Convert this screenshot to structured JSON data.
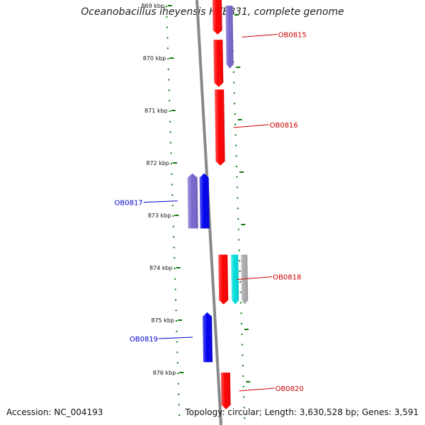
{
  "title": "Oceanobacillus iheyensis HTE831, complete genome",
  "accession": "Accession: NC_004193",
  "summary": "Topology: circular; Length: 3,630,528 bp; Genes: 3,591",
  "colors": {
    "forward_gene": "#ff0000",
    "reverse_gene": "#0000ee",
    "reverse_gene_light": "#7766cc",
    "cyan_feature": "#00dddd",
    "gray_feature": "#aaaaaa",
    "backbone": "#888888",
    "tick": "#117711",
    "forward_label": "#cc0000",
    "reverse_label": "#0000cc"
  },
  "scale": {
    "unit": "kbp",
    "ticks": [
      {
        "pos": 869,
        "label": "869 kbp"
      },
      {
        "pos": 870,
        "label": "870 kbp"
      },
      {
        "pos": 871,
        "label": "871 kbp"
      },
      {
        "pos": 872,
        "label": "872 kbp"
      },
      {
        "pos": 873,
        "label": "873 kbp"
      },
      {
        "pos": 874,
        "label": "874 kbp"
      },
      {
        "pos": 875,
        "label": "875 kbp"
      },
      {
        "pos": 876,
        "label": "876 kbp"
      }
    ]
  },
  "genes": [
    {
      "id": "OB0815",
      "strand": "+",
      "start": 869.0,
      "end": 870.2,
      "track": "fwd1",
      "color": "reverse_gene_light",
      "label": "OB0815",
      "label_color": "forward_label",
      "label_side": "right"
    },
    {
      "id": "OB0814",
      "strand": "+",
      "start": 868.8,
      "end": 869.55,
      "track": "fwd0",
      "color": "forward_gene",
      "label": "",
      "label_color": "forward_label",
      "label_side": "right"
    },
    {
      "id": "g_870",
      "strand": "+",
      "start": 869.65,
      "end": 870.55,
      "track": "fwd0",
      "color": "forward_gene",
      "label": "",
      "label_color": "forward_label",
      "label_side": "right"
    },
    {
      "id": "OB0816",
      "strand": "+",
      "start": 870.6,
      "end": 872.05,
      "track": "fwd0",
      "color": "forward_gene",
      "label": "OB0816",
      "label_color": "forward_label",
      "label_side": "right"
    },
    {
      "id": "OB0817",
      "strand": "-",
      "start": 872.2,
      "end": 873.25,
      "track": "rev1",
      "color": "reverse_gene_light",
      "label": "OB0817",
      "label_color": "reverse_label",
      "label_side": "left"
    },
    {
      "id": "g_872b",
      "strand": "-",
      "start": 872.2,
      "end": 873.25,
      "track": "rev0",
      "color": "reverse_gene",
      "label": "",
      "label_color": "reverse_label",
      "label_side": "left"
    },
    {
      "id": "OB0818",
      "strand": "+",
      "start": 873.75,
      "end": 874.7,
      "track": "fwd0",
      "color": "forward_gene",
      "label": "OB0818",
      "label_color": "forward_label",
      "label_side": "right"
    },
    {
      "id": "g_874c",
      "strand": "+",
      "start": 873.75,
      "end": 874.7,
      "track": "fwd1",
      "color": "cyan_feature",
      "label": "",
      "label_color": "forward_label",
      "label_side": "right"
    },
    {
      "id": "g_874g",
      "strand": "+",
      "start": 873.75,
      "end": 874.7,
      "track": "fwd2",
      "color": "gray_feature",
      "label": "",
      "label_color": "forward_label",
      "label_side": "right"
    },
    {
      "id": "OB0819",
      "strand": "-",
      "start": 874.85,
      "end": 875.8,
      "track": "rev0",
      "color": "reverse_gene",
      "label": "OB0819",
      "label_color": "reverse_label",
      "label_side": "left"
    },
    {
      "id": "OB0820",
      "strand": "+",
      "start": 876.0,
      "end": 876.7,
      "track": "fwd0",
      "color": "forward_gene",
      "label": "OB0820",
      "label_color": "forward_label",
      "label_side": "right"
    }
  ]
}
